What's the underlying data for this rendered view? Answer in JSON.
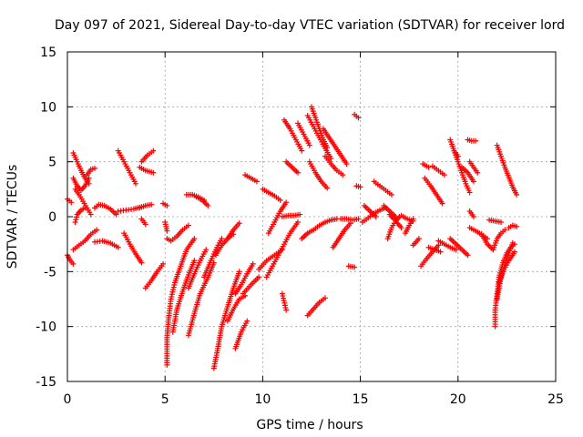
{
  "chart_data": {
    "type": "scatter",
    "title": "Day 097 of 2021, Sidereal Day-to-day VTEC variation (SDTVAR) for receiver lord",
    "xlabel": "GPS time / hours",
    "ylabel": "SDTVAR / TECUs",
    "xlim": [
      0,
      25
    ],
    "ylim": [
      -15,
      15
    ],
    "xticks": [
      0,
      5,
      10,
      15,
      20,
      25
    ],
    "yticks": [
      -15,
      -10,
      -5,
      0,
      5,
      10,
      15
    ],
    "xtick_labels": [
      "0",
      "5",
      "10",
      "15",
      "20",
      "25"
    ],
    "ytick_labels": [
      "-15",
      "-10",
      "-5",
      "0",
      "5",
      "10",
      "15"
    ],
    "grid": true,
    "marker": "plus",
    "color": "#ff0000",
    "series": [
      {
        "x": [
          0.0,
          0.2
        ],
        "y": [
          1.6,
          1.3
        ]
      },
      {
        "x": [
          0.0,
          0.15,
          0.3
        ],
        "y": [
          -3.5,
          -4.0,
          -4.3
        ]
      },
      {
        "x": [
          0.3,
          0.5,
          0.7,
          0.9,
          1.1
        ],
        "y": [
          5.8,
          5.0,
          4.2,
          3.5,
          3.0
        ]
      },
      {
        "x": [
          0.3,
          0.5,
          0.7,
          0.9,
          1.1
        ],
        "y": [
          3.5,
          2.8,
          2.4,
          2.8,
          3.5
        ]
      },
      {
        "x": [
          0.4,
          0.6,
          0.8,
          1.0,
          1.2
        ],
        "y": [
          2.5,
          2.0,
          1.4,
          0.8,
          0.2
        ]
      },
      {
        "x": [
          0.4,
          0.5,
          0.7,
          0.9
        ],
        "y": [
          -0.5,
          0.2,
          0.6,
          0.8
        ]
      },
      {
        "x": [
          1.0,
          1.2,
          1.4
        ],
        "y": [
          3.8,
          4.3,
          4.4
        ]
      },
      {
        "x": [
          0.3,
          0.6,
          0.9,
          1.2,
          1.5
        ],
        "y": [
          -3.0,
          -2.6,
          -2.2,
          -1.6,
          -1.2
        ]
      },
      {
        "x": [
          1.4,
          1.6,
          1.9,
          2.2,
          2.5
        ],
        "y": [
          0.8,
          1.1,
          1.0,
          0.7,
          0.2
        ]
      },
      {
        "x": [
          1.4,
          1.8,
          2.2,
          2.6
        ],
        "y": [
          -2.3,
          -2.2,
          -2.4,
          -2.8
        ]
      },
      {
        "x": [
          2.6,
          2.9,
          3.2,
          3.5
        ],
        "y": [
          6.0,
          5.0,
          4.0,
          3.0
        ]
      },
      {
        "x": [
          2.6,
          3.0,
          3.4,
          3.8
        ],
        "y": [
          0.5,
          0.6,
          0.7,
          0.9
        ]
      },
      {
        "x": [
          2.9,
          3.2,
          3.5,
          3.8
        ],
        "y": [
          -1.5,
          -2.5,
          -3.4,
          -4.2
        ]
      },
      {
        "x": [
          3.7,
          4.0,
          4.4
        ],
        "y": [
          4.5,
          4.2,
          4.0
        ]
      },
      {
        "x": [
          3.8,
          4.1,
          4.4
        ],
        "y": [
          5.0,
          5.6,
          6.0
        ]
      },
      {
        "x": [
          3.7,
          4.0,
          4.3
        ],
        "y": [
          0.8,
          1.0,
          1.1
        ]
      },
      {
        "x": [
          4.0,
          4.3,
          4.6,
          4.9
        ],
        "y": [
          -6.5,
          -5.8,
          -5.0,
          -4.3
        ]
      },
      {
        "x": [
          3.8,
          4.0
        ],
        "y": [
          -0.2,
          -0.7
        ]
      },
      {
        "x": [
          4.9,
          5.1
        ],
        "y": [
          1.2,
          1.0
        ]
      },
      {
        "x": [
          5.0,
          5.1
        ],
        "y": [
          -0.5,
          -1.3
        ]
      },
      {
        "x": [
          5.1,
          5.3,
          5.6,
          5.9,
          6.2
        ],
        "y": [
          -2.0,
          -2.2,
          -1.8,
          -1.2,
          -0.8
        ]
      },
      {
        "x": [
          5.1,
          5.1,
          5.2,
          5.3,
          5.5,
          5.8,
          6.1,
          6.5
        ],
        "y": [
          -13.5,
          -11.0,
          -9.0,
          -7.5,
          -6.0,
          -4.5,
          -3.0,
          -2.0
        ]
      },
      {
        "x": [
          5.4,
          5.6,
          5.9,
          6.2,
          6.5
        ],
        "y": [
          -10.5,
          -8.5,
          -6.8,
          -5.3,
          -4.0
        ]
      },
      {
        "x": [
          6.2,
          6.5,
          6.8,
          7.2,
          7.5
        ],
        "y": [
          -10.8,
          -8.8,
          -7.0,
          -5.5,
          -4.2
        ]
      },
      {
        "x": [
          6.2,
          6.5,
          6.8,
          7.1
        ],
        "y": [
          -6.5,
          -5.2,
          -4.0,
          -3.0
        ]
      },
      {
        "x": [
          6.1,
          6.4,
          6.7,
          7.0
        ],
        "y": [
          2.0,
          2.0,
          1.8,
          1.5
        ]
      },
      {
        "x": [
          6.6,
          6.9,
          7.2
        ],
        "y": [
          1.8,
          1.5,
          1.0
        ]
      },
      {
        "x": [
          7.0,
          7.3,
          7.6,
          7.9
        ],
        "y": [
          -5.5,
          -4.2,
          -3.0,
          -2.0
        ]
      },
      {
        "x": [
          7.5,
          7.7,
          7.9,
          8.2,
          8.5,
          8.8
        ],
        "y": [
          -13.8,
          -12.0,
          -10.0,
          -8.2,
          -6.5,
          -5.0
        ]
      },
      {
        "x": [
          7.6,
          7.9,
          8.2,
          8.5
        ],
        "y": [
          -3.5,
          -2.6,
          -2.0,
          -1.6
        ]
      },
      {
        "x": [
          8.2,
          8.5,
          8.8,
          9.1
        ],
        "y": [
          -9.5,
          -8.4,
          -7.5,
          -7.2
        ]
      },
      {
        "x": [
          8.6,
          8.9,
          9.2,
          9.5
        ],
        "y": [
          -7.0,
          -6.2,
          -5.2,
          -4.3
        ]
      },
      {
        "x": [
          8.2,
          8.5,
          8.8
        ],
        "y": [
          -2.0,
          -1.2,
          -0.6
        ]
      },
      {
        "x": [
          8.6,
          8.9,
          9.2
        ],
        "y": [
          -12.0,
          -10.5,
          -9.5
        ]
      },
      {
        "x": [
          9.1,
          9.4,
          9.7
        ],
        "y": [
          3.8,
          3.5,
          3.2
        ]
      },
      {
        "x": [
          9.0,
          9.4,
          9.8
        ],
        "y": [
          -7.0,
          -6.2,
          -5.5
        ]
      },
      {
        "x": [
          10.0,
          10.3,
          10.6,
          10.9
        ],
        "y": [
          2.5,
          2.2,
          1.9,
          1.5
        ]
      },
      {
        "x": [
          9.8,
          10.2,
          10.6,
          11.0
        ],
        "y": [
          -4.8,
          -4.0,
          -3.5,
          -3.0
        ]
      },
      {
        "x": [
          10.3,
          10.6,
          10.9,
          11.2
        ],
        "y": [
          -1.5,
          -0.5,
          0.5,
          1.3
        ]
      },
      {
        "x": [
          10.2,
          10.5,
          10.8,
          11.1,
          11.4,
          11.8
        ],
        "y": [
          -5.5,
          -4.5,
          -3.5,
          -2.5,
          -1.5,
          -0.5
        ]
      },
      {
        "x": [
          11.0,
          11.3,
          11.6,
          11.9
        ],
        "y": [
          0.0,
          0.1,
          0.1,
          0.2
        ]
      },
      {
        "x": [
          11.1,
          11.4,
          11.7,
          12.0
        ],
        "y": [
          8.8,
          8.0,
          7.0,
          6.0
        ]
      },
      {
        "x": [
          11.2,
          11.5,
          11.8
        ],
        "y": [
          5.0,
          4.5,
          4.0
        ]
      },
      {
        "x": [
          11.8,
          12.1,
          12.4
        ],
        "y": [
          8.5,
          7.5,
          6.5
        ]
      },
      {
        "x": [
          11.0,
          11.2
        ],
        "y": [
          -7.0,
          -8.5
        ]
      },
      {
        "x": [
          12.0,
          12.3,
          12.6
        ],
        "y": [
          -2.0,
          -1.5,
          -1.2
        ]
      },
      {
        "x": [
          12.3,
          12.6,
          12.9,
          13.2,
          13.5
        ],
        "y": [
          9.2,
          8.2,
          7.2,
          6.2,
          5.3
        ]
      },
      {
        "x": [
          12.5,
          12.7,
          12.9,
          13.1,
          13.3
        ],
        "y": [
          10.0,
          9.0,
          8.0,
          7.0,
          6.3
        ]
      },
      {
        "x": [
          12.4,
          12.7,
          13.0,
          13.3
        ],
        "y": [
          5.0,
          4.0,
          3.2,
          2.6
        ]
      },
      {
        "x": [
          12.3,
          12.6,
          12.9,
          13.2
        ],
        "y": [
          -9.0,
          -8.4,
          -7.8,
          -7.4
        ]
      },
      {
        "x": [
          12.6,
          12.9,
          13.2,
          13.5,
          13.8
        ],
        "y": [
          -1.2,
          -0.8,
          -0.5,
          -0.3,
          -0.2
        ]
      },
      {
        "x": [
          13.1,
          13.4,
          13.7,
          14.0,
          14.3
        ],
        "y": [
          8.0,
          7.2,
          6.4,
          5.6,
          4.8
        ]
      },
      {
        "x": [
          13.2,
          13.5,
          13.8,
          14.1
        ],
        "y": [
          5.5,
          4.8,
          4.2,
          3.8
        ]
      },
      {
        "x": [
          13.6,
          13.9,
          14.2,
          14.5
        ],
        "y": [
          -2.8,
          -2.0,
          -1.2,
          -0.6
        ]
      },
      {
        "x": [
          14.0,
          14.3,
          14.6,
          14.9
        ],
        "y": [
          -0.2,
          -0.2,
          -0.3,
          -0.2
        ]
      },
      {
        "x": [
          14.4,
          14.7
        ],
        "y": [
          -4.5,
          -4.6
        ]
      },
      {
        "x": [
          14.7,
          14.9
        ],
        "y": [
          9.3,
          9.0
        ]
      },
      {
        "x": [
          14.8,
          15.0
        ],
        "y": [
          2.8,
          2.7
        ]
      },
      {
        "x": [
          15.1,
          15.4,
          15.7,
          16.0,
          16.3
        ],
        "y": [
          -0.5,
          -0.1,
          0.3,
          0.6,
          0.8
        ]
      },
      {
        "x": [
          15.2,
          15.5,
          15.8
        ],
        "y": [
          1.0,
          0.5,
          0.0
        ]
      },
      {
        "x": [
          15.7,
          16.0,
          16.3,
          16.6
        ],
        "y": [
          3.2,
          2.8,
          2.4,
          2.0
        ]
      },
      {
        "x": [
          16.2,
          16.5,
          16.8
        ],
        "y": [
          1.0,
          0.5,
          0.0
        ]
      },
      {
        "x": [
          16.5,
          16.7
        ],
        "y": [
          0.2,
          -0.2
        ]
      },
      {
        "x": [
          16.4,
          16.6,
          16.8,
          17.0
        ],
        "y": [
          -2.0,
          -1.0,
          -0.4,
          0.0
        ]
      },
      {
        "x": [
          16.7,
          16.9,
          17.1
        ],
        "y": [
          0.0,
          -0.6,
          -1.0
        ]
      },
      {
        "x": [
          17.1,
          17.4,
          17.7
        ],
        "y": [
          0.1,
          -0.2,
          -0.4
        ]
      },
      {
        "x": [
          17.3,
          17.5,
          17.7
        ],
        "y": [
          -1.5,
          -0.8,
          -0.2
        ]
      },
      {
        "x": [
          17.7,
          18.0
        ],
        "y": [
          -2.6,
          -2.0
        ]
      },
      {
        "x": [
          18.1,
          18.4,
          18.7,
          19.0
        ],
        "y": [
          -4.5,
          -3.8,
          -3.2,
          -2.6
        ]
      },
      {
        "x": [
          18.2,
          18.5
        ],
        "y": [
          4.8,
          4.5
        ]
      },
      {
        "x": [
          18.3,
          18.6,
          18.9,
          19.2
        ],
        "y": [
          3.5,
          2.8,
          2.0,
          1.2
        ]
      },
      {
        "x": [
          18.7,
          19.0,
          19.3
        ],
        "y": [
          4.6,
          4.2,
          3.8
        ]
      },
      {
        "x": [
          18.5,
          18.8,
          19.1
        ],
        "y": [
          -2.8,
          -3.0,
          -3.2
        ]
      },
      {
        "x": [
          19.0,
          19.3,
          19.6,
          19.9
        ],
        "y": [
          -2.2,
          -2.5,
          -2.8,
          -3.0
        ]
      },
      {
        "x": [
          19.6,
          19.9,
          20.2,
          20.5
        ],
        "y": [
          -2.0,
          -2.5,
          -3.0,
          -3.5
        ]
      },
      {
        "x": [
          19.6,
          19.8,
          20.0
        ],
        "y": [
          7.0,
          6.0,
          5.5
        ]
      },
      {
        "x": [
          19.8,
          20.0,
          20.2,
          20.4,
          20.6
        ],
        "y": [
          6.0,
          5.0,
          4.0,
          3.0,
          2.2
        ]
      },
      {
        "x": [
          20.2,
          20.5,
          20.8
        ],
        "y": [
          4.5,
          4.0,
          3.2
        ]
      },
      {
        "x": [
          20.5,
          20.7,
          20.9
        ],
        "y": [
          7.0,
          6.9,
          6.9
        ]
      },
      {
        "x": [
          20.6,
          20.8,
          21.0
        ],
        "y": [
          5.0,
          4.5,
          4.0
        ]
      },
      {
        "x": [
          20.6,
          20.8
        ],
        "y": [
          0.5,
          0.0
        ]
      },
      {
        "x": [
          20.6,
          20.9,
          21.2,
          21.5
        ],
        "y": [
          -1.0,
          -1.3,
          -1.6,
          -2.0
        ]
      },
      {
        "x": [
          21.2,
          21.5,
          21.8
        ],
        "y": [
          -1.6,
          -2.5,
          -3.0
        ]
      },
      {
        "x": [
          21.6,
          21.9,
          22.2
        ],
        "y": [
          -0.3,
          -0.4,
          -0.5
        ]
      },
      {
        "x": [
          21.8,
          22.0,
          22.2,
          22.4
        ],
        "y": [
          -3.0,
          -2.0,
          -1.5,
          -1.2
        ]
      },
      {
        "x": [
          21.9,
          21.9,
          22.0,
          22.1,
          22.3,
          22.5,
          22.7,
          22.9
        ],
        "y": [
          -10.0,
          -8.5,
          -7.0,
          -5.5,
          -4.2,
          -3.3,
          -2.8,
          -2.5
        ]
      },
      {
        "x": [
          22.0,
          22.1,
          22.2,
          22.4,
          22.6,
          22.8
        ],
        "y": [
          -7.5,
          -6.5,
          -5.5,
          -4.4,
          -3.3,
          -2.4
        ]
      },
      {
        "x": [
          22.1,
          22.3,
          22.6,
          22.9
        ],
        "y": [
          -6.0,
          -5.0,
          -4.0,
          -3.2
        ]
      },
      {
        "x": [
          22.0,
          22.2,
          22.4,
          22.6,
          22.8,
          23.0
        ],
        "y": [
          6.5,
          5.5,
          4.5,
          3.6,
          2.7,
          2.0
        ]
      },
      {
        "x": [
          22.6,
          22.8,
          23.0
        ],
        "y": [
          -1.0,
          -0.8,
          -0.9
        ]
      }
    ]
  }
}
